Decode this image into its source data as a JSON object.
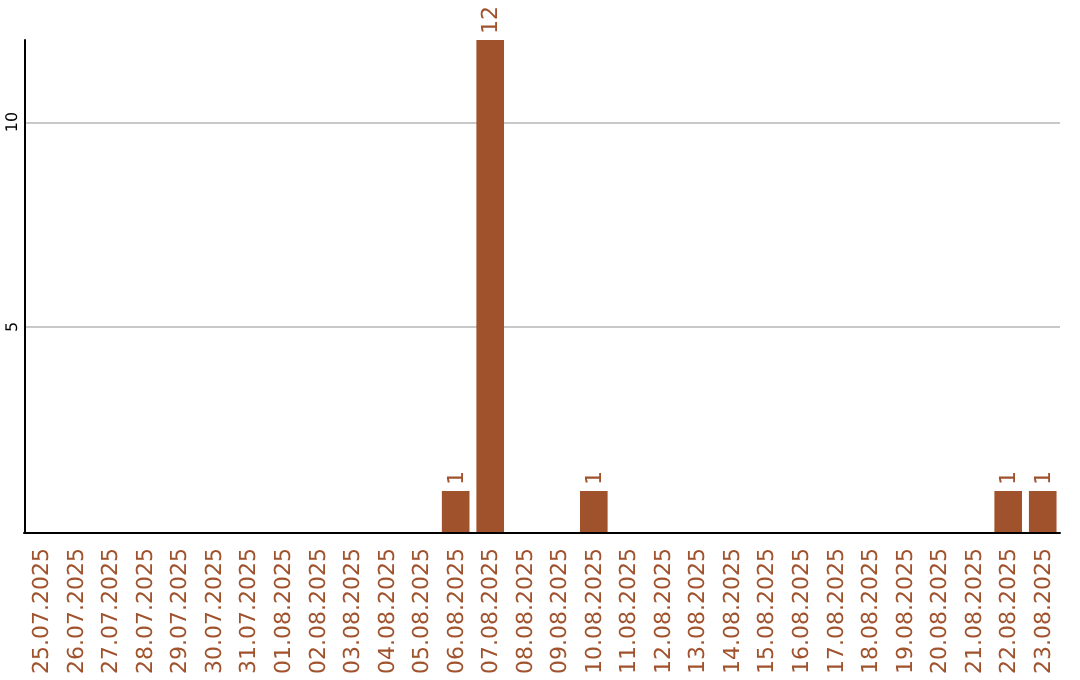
{
  "chart_data": {
    "type": "bar",
    "categories": [
      "25.07.2025",
      "26.07.2025",
      "27.07.2025",
      "28.07.2025",
      "29.07.2025",
      "30.07.2025",
      "31.07.2025",
      "01.08.2025",
      "02.08.2025",
      "03.08.2025",
      "04.08.2025",
      "05.08.2025",
      "06.08.2025",
      "07.08.2025",
      "08.08.2025",
      "09.08.2025",
      "10.08.2025",
      "11.08.2025",
      "12.08.2025",
      "13.08.2025",
      "14.08.2025",
      "15.08.2025",
      "16.08.2025",
      "17.08.2025",
      "18.08.2025",
      "19.08.2025",
      "20.08.2025",
      "21.08.2025",
      "22.08.2025",
      "23.08.2025"
    ],
    "values": [
      0,
      0,
      0,
      0,
      0,
      0,
      0,
      0,
      0,
      0,
      0,
      0,
      1,
      12,
      0,
      0,
      1,
      0,
      0,
      0,
      0,
      0,
      0,
      0,
      0,
      0,
      0,
      0,
      1,
      1
    ],
    "value_labels": [
      null,
      null,
      null,
      null,
      null,
      null,
      null,
      null,
      null,
      null,
      null,
      null,
      "1",
      "12",
      null,
      null,
      "1",
      null,
      null,
      null,
      null,
      null,
      null,
      null,
      null,
      null,
      null,
      null,
      "1",
      "1"
    ],
    "color": "#a0522d",
    "ylim": [
      0,
      12
    ],
    "yticks": [
      5,
      10
    ],
    "grid": "y"
  }
}
